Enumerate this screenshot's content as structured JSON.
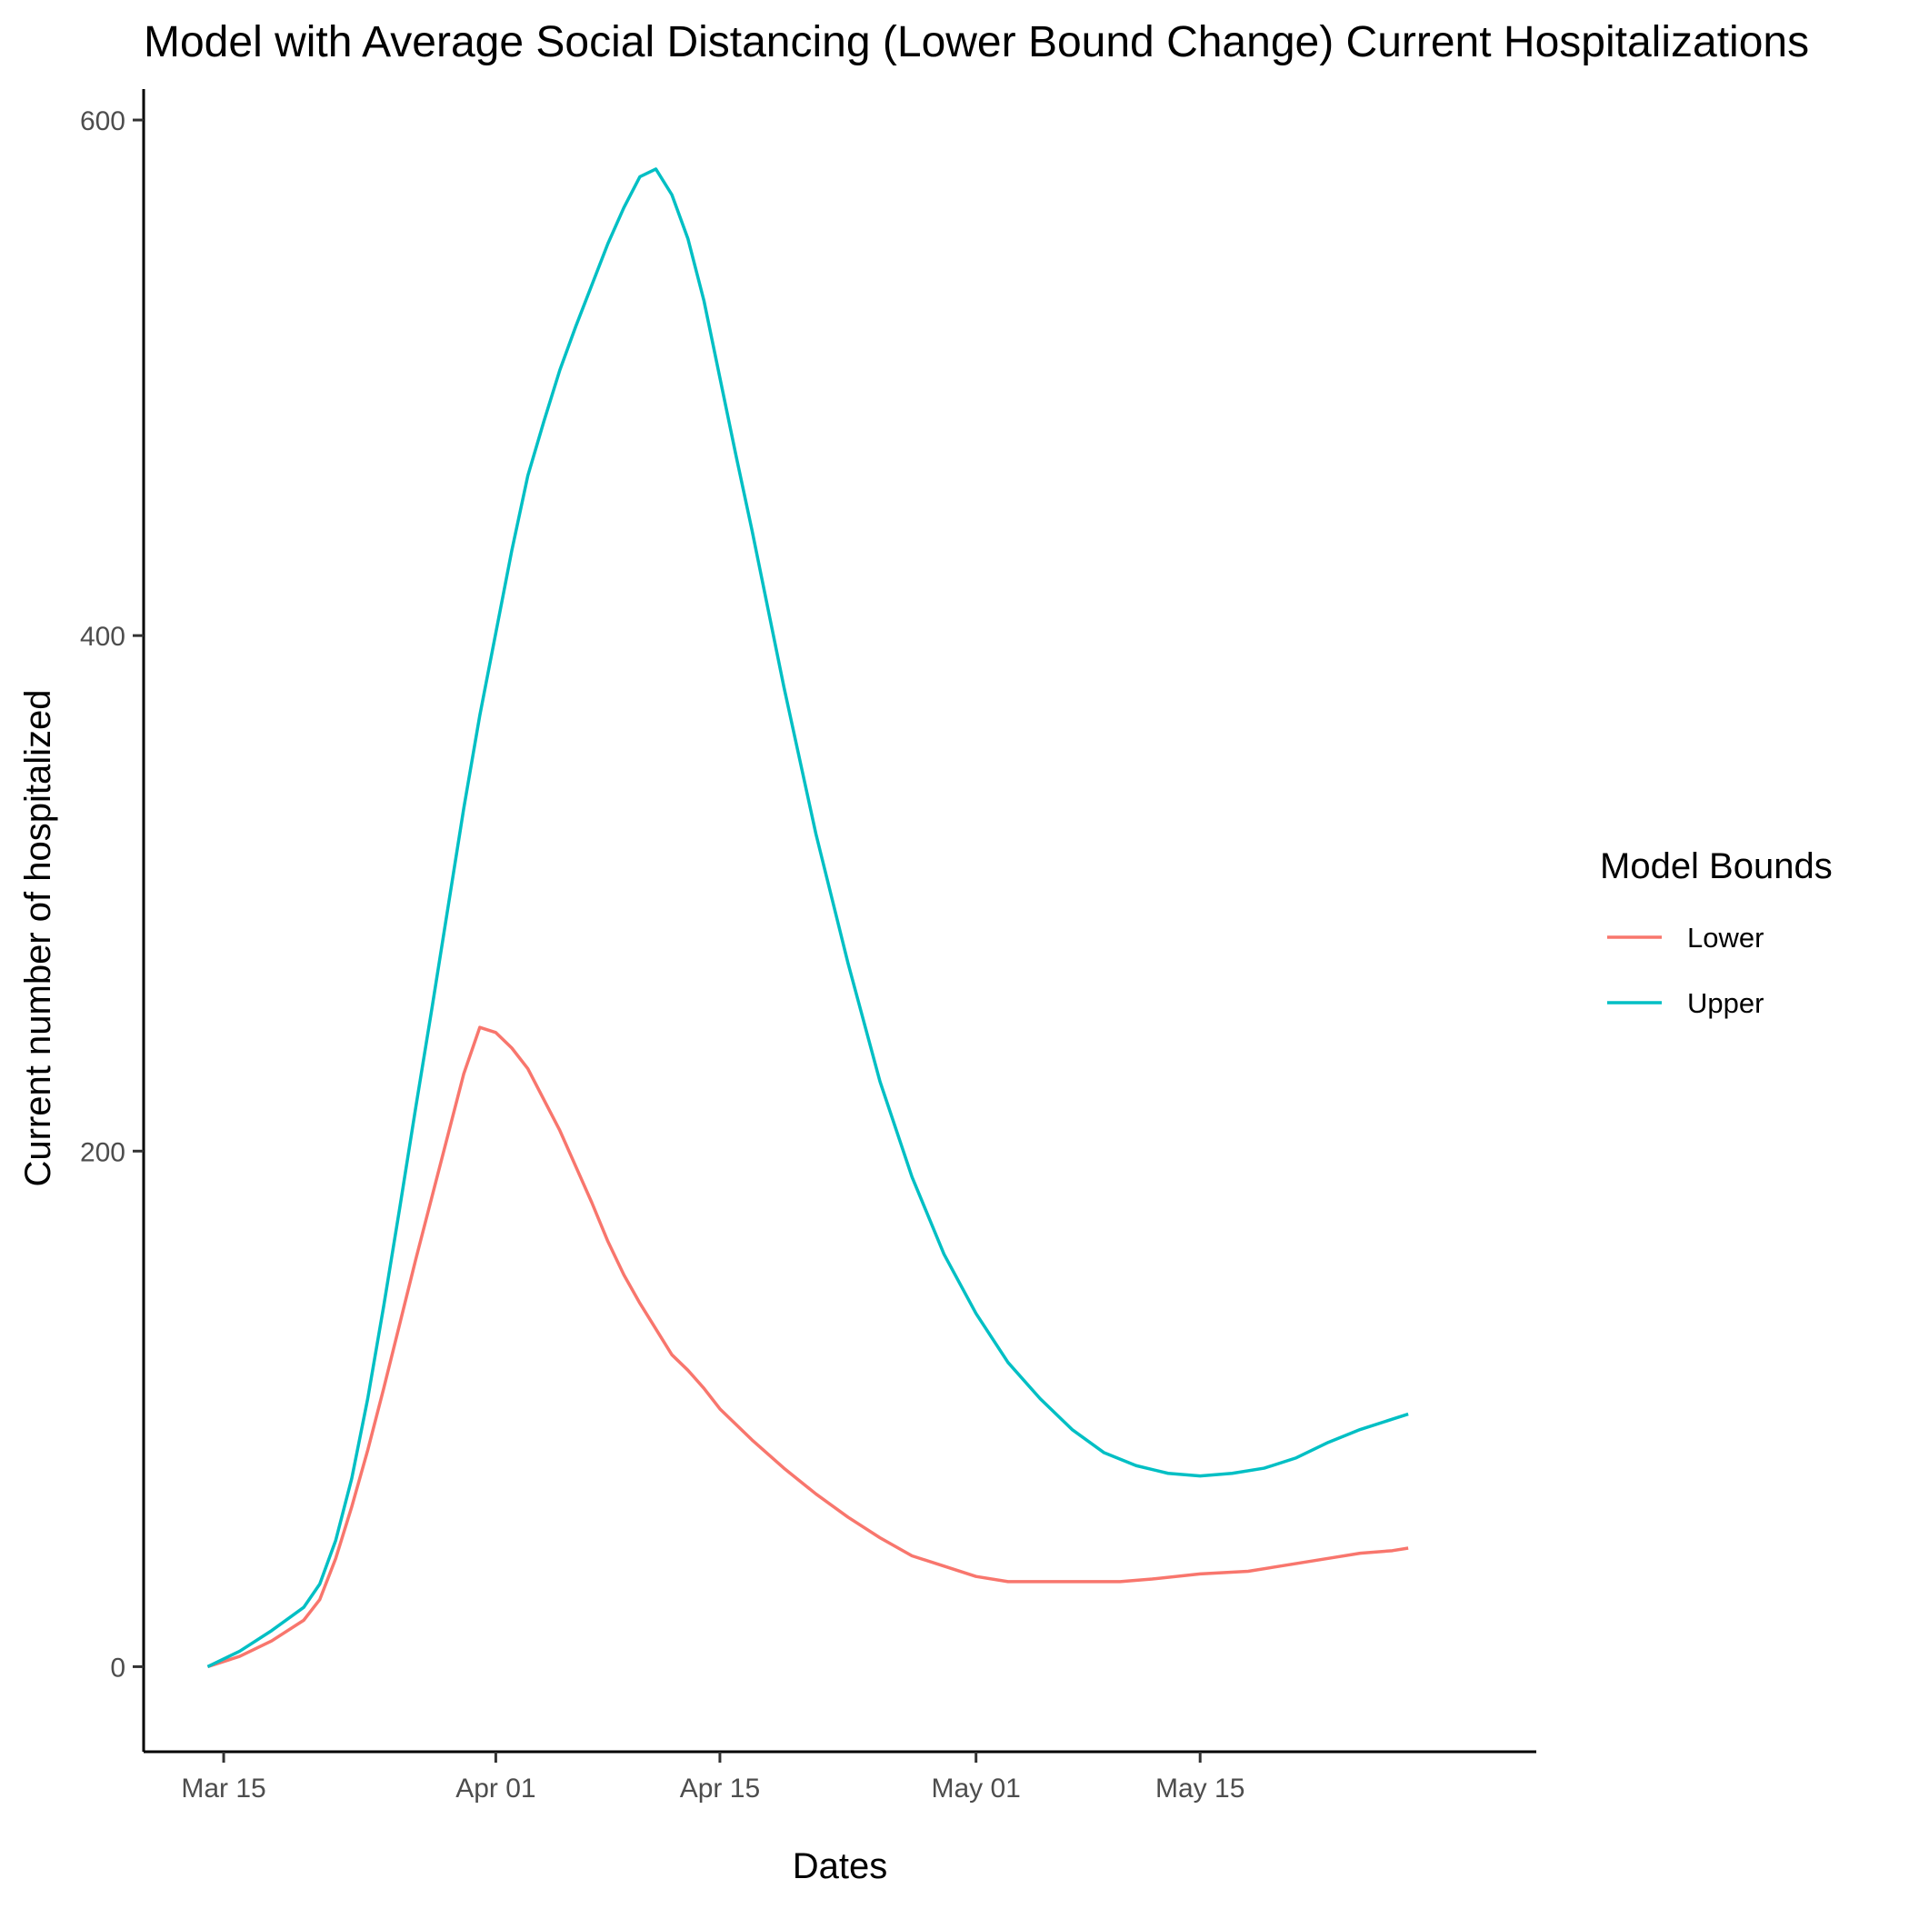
{
  "chart_data": {
    "type": "line",
    "title": "Model with Average Social Distancing (Lower Bound Change) Current Hospitalizations",
    "xlabel": "Dates",
    "ylabel": "Current number of hospitalized",
    "ylim": [
      -33,
      612
    ],
    "xlim": [
      "2020-03-10",
      "2020-06-05"
    ],
    "x_ticks": [
      "2020-03-15",
      "2020-04-01",
      "2020-04-15",
      "2020-05-01",
      "2020-05-15"
    ],
    "x_tick_labels": [
      "Mar 15",
      "Apr 01",
      "Apr 15",
      "May 01",
      "May 15"
    ],
    "y_ticks": [
      0,
      200,
      400,
      600
    ],
    "grid": false,
    "legend": {
      "title": "Model Bounds",
      "placement": "right"
    },
    "series": [
      {
        "name": "Lower",
        "color": "#F8766D",
        "points": [
          [
            "2020-03-14",
            0
          ],
          [
            "2020-03-16",
            4
          ],
          [
            "2020-03-18",
            10
          ],
          [
            "2020-03-20",
            18
          ],
          [
            "2020-03-21",
            26
          ],
          [
            "2020-03-22",
            42
          ],
          [
            "2020-03-23",
            62
          ],
          [
            "2020-03-24",
            84
          ],
          [
            "2020-03-25",
            108
          ],
          [
            "2020-03-26",
            133
          ],
          [
            "2020-03-27",
            158
          ],
          [
            "2020-03-28",
            182
          ],
          [
            "2020-03-29",
            206
          ],
          [
            "2020-03-30",
            230
          ],
          [
            "2020-03-31",
            248
          ],
          [
            "2020-04-01",
            246
          ],
          [
            "2020-04-02",
            240
          ],
          [
            "2020-04-03",
            232
          ],
          [
            "2020-04-04",
            220
          ],
          [
            "2020-04-05",
            208
          ],
          [
            "2020-04-06",
            194
          ],
          [
            "2020-04-07",
            180
          ],
          [
            "2020-04-08",
            165
          ],
          [
            "2020-04-09",
            152
          ],
          [
            "2020-04-10",
            141
          ],
          [
            "2020-04-12",
            121
          ],
          [
            "2020-04-13",
            115
          ],
          [
            "2020-04-14",
            108
          ],
          [
            "2020-04-15",
            100
          ],
          [
            "2020-04-17",
            88
          ],
          [
            "2020-04-19",
            77
          ],
          [
            "2020-04-21",
            67
          ],
          [
            "2020-04-23",
            58
          ],
          [
            "2020-04-25",
            50
          ],
          [
            "2020-04-27",
            43
          ],
          [
            "2020-04-29",
            39
          ],
          [
            "2020-05-01",
            35
          ],
          [
            "2020-05-03",
            33
          ],
          [
            "2020-05-05",
            33
          ],
          [
            "2020-05-10",
            33
          ],
          [
            "2020-05-12",
            34
          ],
          [
            "2020-05-15",
            36
          ],
          [
            "2020-05-18",
            37
          ],
          [
            "2020-05-20",
            39
          ],
          [
            "2020-05-23",
            42
          ],
          [
            "2020-05-25",
            44
          ],
          [
            "2020-05-27",
            45
          ],
          [
            "2020-05-28",
            46
          ]
        ]
      },
      {
        "name": "Upper",
        "color": "#00BFC4",
        "points": [
          [
            "2020-03-14",
            0
          ],
          [
            "2020-03-16",
            6
          ],
          [
            "2020-03-18",
            14
          ],
          [
            "2020-03-20",
            23
          ],
          [
            "2020-03-21",
            32
          ],
          [
            "2020-03-22",
            49
          ],
          [
            "2020-03-23",
            73
          ],
          [
            "2020-03-24",
            104
          ],
          [
            "2020-03-25",
            140
          ],
          [
            "2020-03-26",
            178
          ],
          [
            "2020-03-27",
            217
          ],
          [
            "2020-03-28",
            255
          ],
          [
            "2020-03-29",
            294
          ],
          [
            "2020-03-30",
            333
          ],
          [
            "2020-03-31",
            369
          ],
          [
            "2020-04-01",
            401
          ],
          [
            "2020-04-02",
            433
          ],
          [
            "2020-04-03",
            462
          ],
          [
            "2020-04-04",
            483
          ],
          [
            "2020-04-05",
            503
          ],
          [
            "2020-04-06",
            520
          ],
          [
            "2020-04-07",
            536
          ],
          [
            "2020-04-08",
            552
          ],
          [
            "2020-04-09",
            566
          ],
          [
            "2020-04-10",
            578
          ],
          [
            "2020-04-11",
            581
          ],
          [
            "2020-04-12",
            571
          ],
          [
            "2020-04-13",
            554
          ],
          [
            "2020-04-14",
            530
          ],
          [
            "2020-04-15",
            500
          ],
          [
            "2020-04-16",
            470
          ],
          [
            "2020-04-17",
            441
          ],
          [
            "2020-04-19",
            380
          ],
          [
            "2020-04-21",
            323
          ],
          [
            "2020-04-23",
            273
          ],
          [
            "2020-04-25",
            227
          ],
          [
            "2020-04-27",
            190
          ],
          [
            "2020-04-29",
            160
          ],
          [
            "2020-05-01",
            137
          ],
          [
            "2020-05-03",
            118
          ],
          [
            "2020-05-05",
            104
          ],
          [
            "2020-05-07",
            92
          ],
          [
            "2020-05-09",
            83
          ],
          [
            "2020-05-11",
            78
          ],
          [
            "2020-05-13",
            75
          ],
          [
            "2020-05-15",
            74
          ],
          [
            "2020-05-17",
            75
          ],
          [
            "2020-05-19",
            77
          ],
          [
            "2020-05-21",
            81
          ],
          [
            "2020-05-23",
            87
          ],
          [
            "2020-05-25",
            92
          ],
          [
            "2020-05-27",
            96
          ],
          [
            "2020-05-28",
            98
          ]
        ]
      }
    ]
  }
}
